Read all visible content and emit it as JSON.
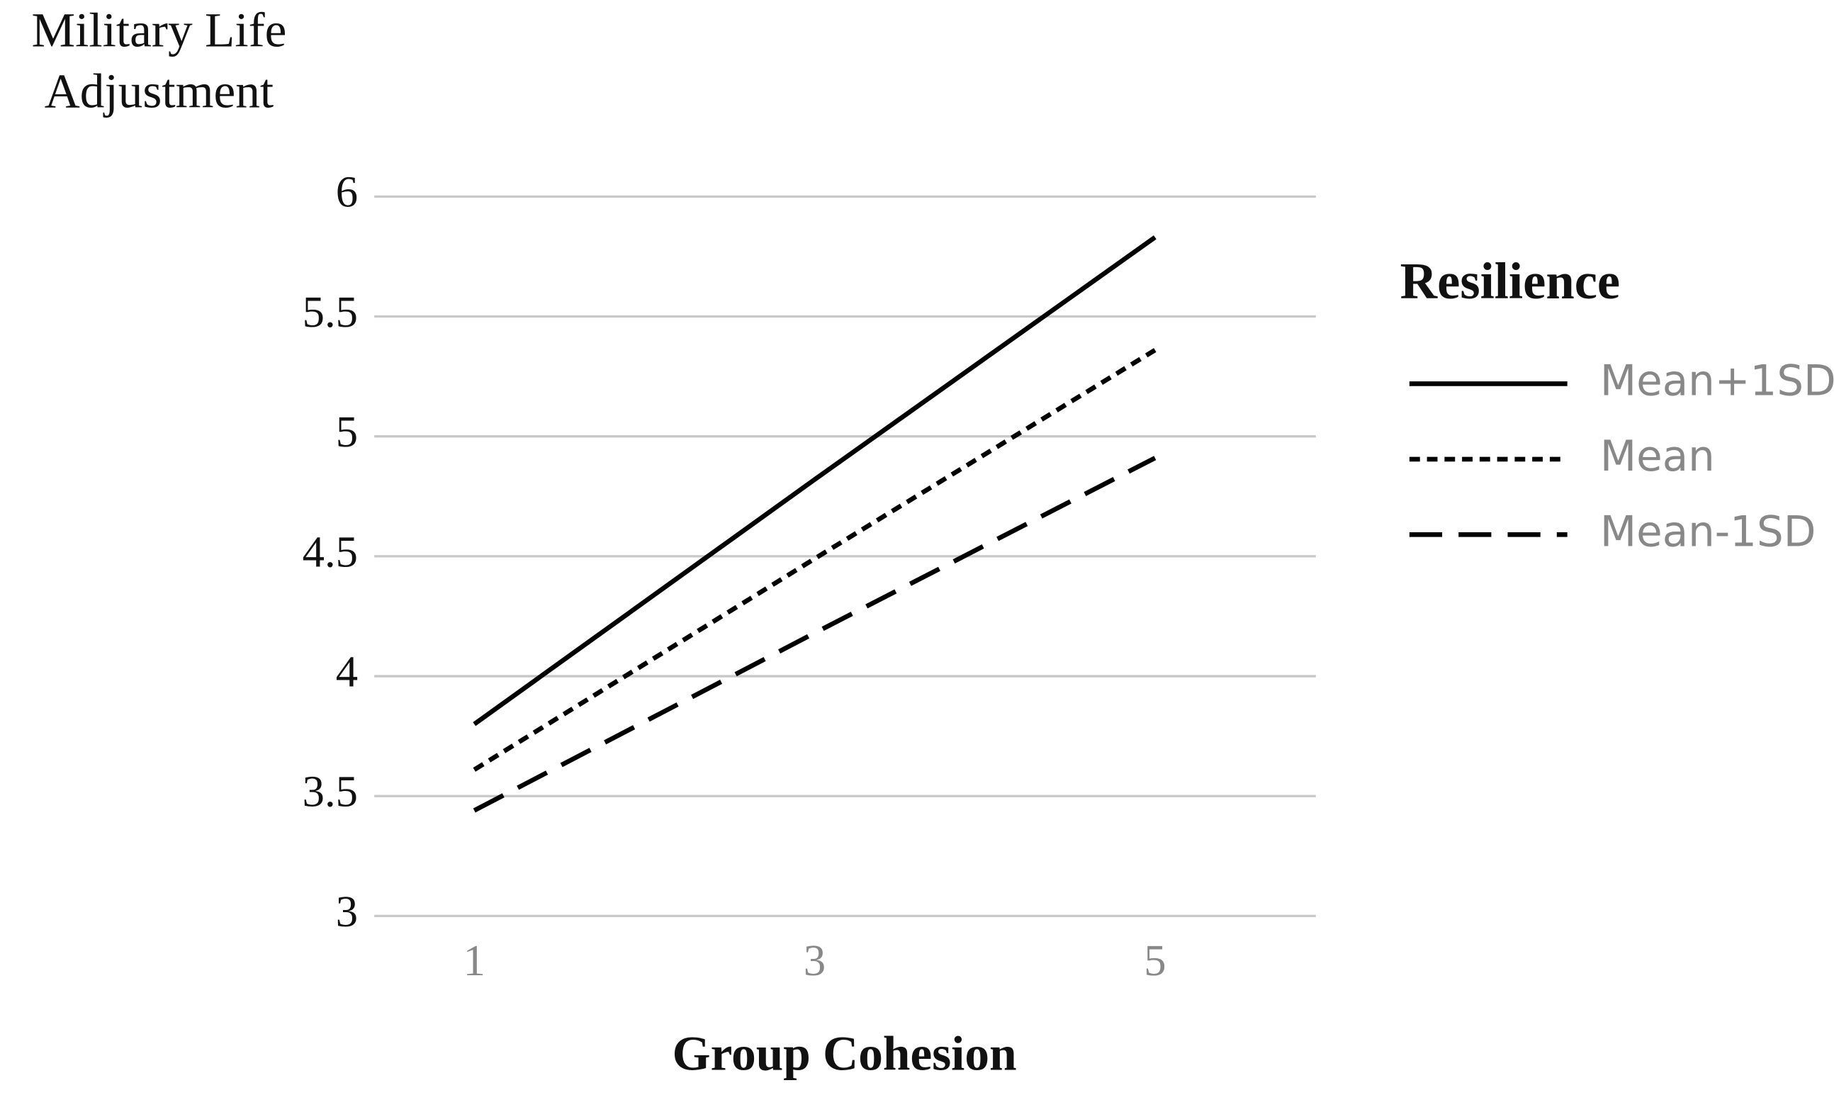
{
  "chart_data": {
    "type": "line",
    "y_label": [
      "Military Life",
      "Adjustment"
    ],
    "x_label": "Group Cohesion",
    "legend_title": "Resilience",
    "legend_position": "right",
    "categories": [
      "1",
      "3",
      "5"
    ],
    "ylim": [
      3,
      6
    ],
    "yticks": [
      3,
      3.5,
      4,
      4.5,
      5,
      5.5,
      6
    ],
    "grid": true,
    "series": [
      {
        "name": "Mean+1SD",
        "color": "#000000",
        "dash": "solid",
        "values": [
          3.8,
          4.82,
          5.83
        ]
      },
      {
        "name": "Mean",
        "color": "#000000",
        "dash": "dotted",
        "values": [
          3.61,
          4.49,
          5.36
        ]
      },
      {
        "name": "Mean-1SD",
        "color": "#000000",
        "dash": "dashed",
        "values": [
          3.44,
          4.18,
          4.91
        ]
      }
    ]
  }
}
